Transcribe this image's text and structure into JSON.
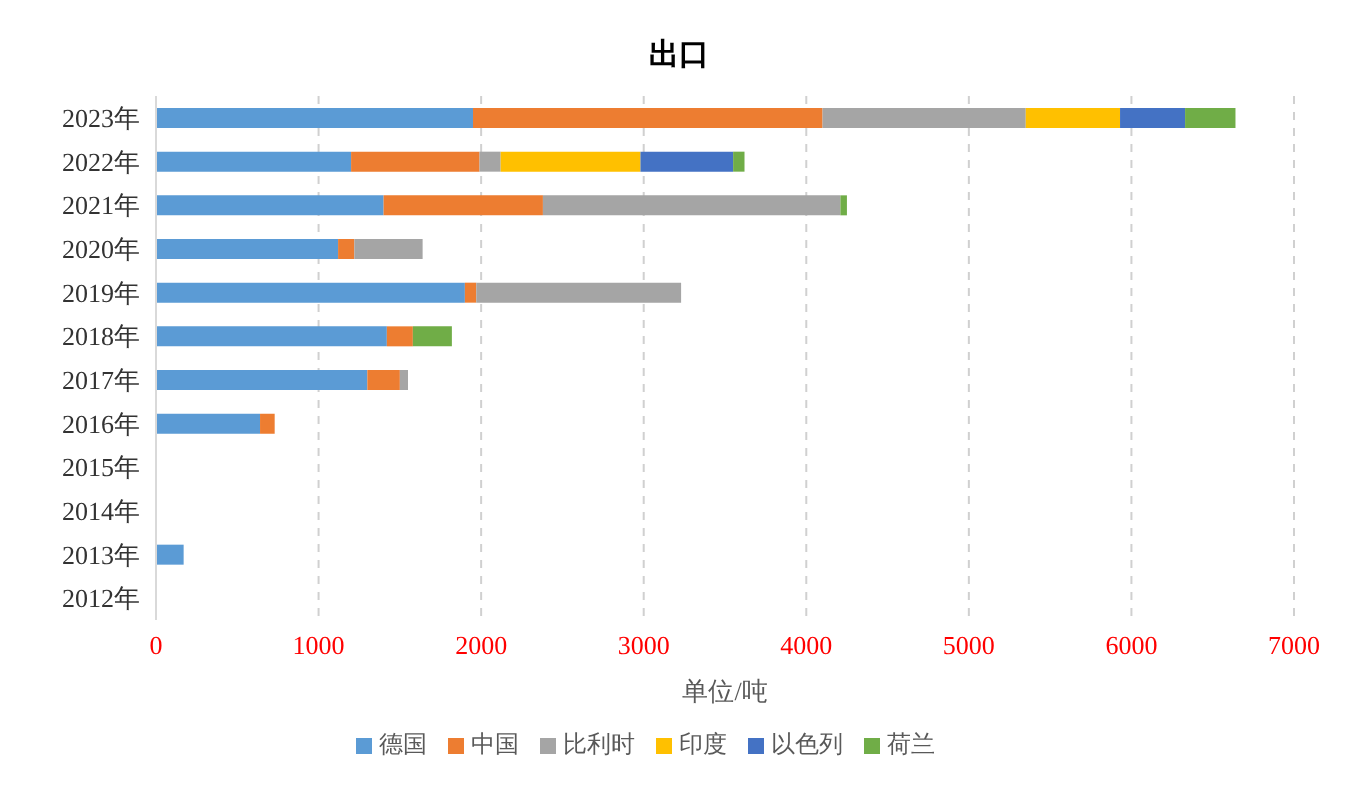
{
  "chart_data": {
    "type": "bar",
    "title": "出口",
    "xlabel": "单位/吨",
    "orientation": "horizontal",
    "stacked": true,
    "categories": [
      "2023年",
      "2022年",
      "2021年",
      "2020年",
      "2019年",
      "2018年",
      "2017年",
      "2016年",
      "2015年",
      "2014年",
      "2013年",
      "2012年"
    ],
    "series": [
      {
        "name": "德国",
        "color": "#5b9bd5",
        "values": [
          1950,
          1200,
          1400,
          1120,
          1900,
          1420,
          1300,
          640,
          null,
          null,
          170,
          null
        ]
      },
      {
        "name": "中国",
        "color": "#ed7d31",
        "values": [
          2150,
          790,
          980,
          100,
          70,
          160,
          200,
          90,
          null,
          null,
          null,
          null
        ]
      },
      {
        "name": "比利时",
        "color": "#a5a5a5",
        "values": [
          1250,
          130,
          1830,
          420,
          1260,
          null,
          50,
          null,
          null,
          null,
          null,
          null
        ]
      },
      {
        "name": "印度",
        "color": "#ffc000",
        "values": [
          580,
          860,
          null,
          null,
          null,
          null,
          null,
          null,
          null,
          null,
          null,
          null
        ]
      },
      {
        "name": "以色列",
        "color": "#4472c4",
        "values": [
          400,
          570,
          null,
          null,
          null,
          null,
          null,
          null,
          null,
          null,
          null,
          null
        ]
      },
      {
        "name": "荷兰",
        "color": "#70ad47",
        "values": [
          310,
          70,
          40,
          null,
          null,
          240,
          null,
          null,
          null,
          null,
          null,
          null
        ]
      }
    ],
    "xlim": [
      0,
      7000
    ],
    "xticks": [
      0,
      1000,
      2000,
      3000,
      4000,
      5000,
      6000,
      7000
    ],
    "grid": "x",
    "legend": "bottom"
  }
}
